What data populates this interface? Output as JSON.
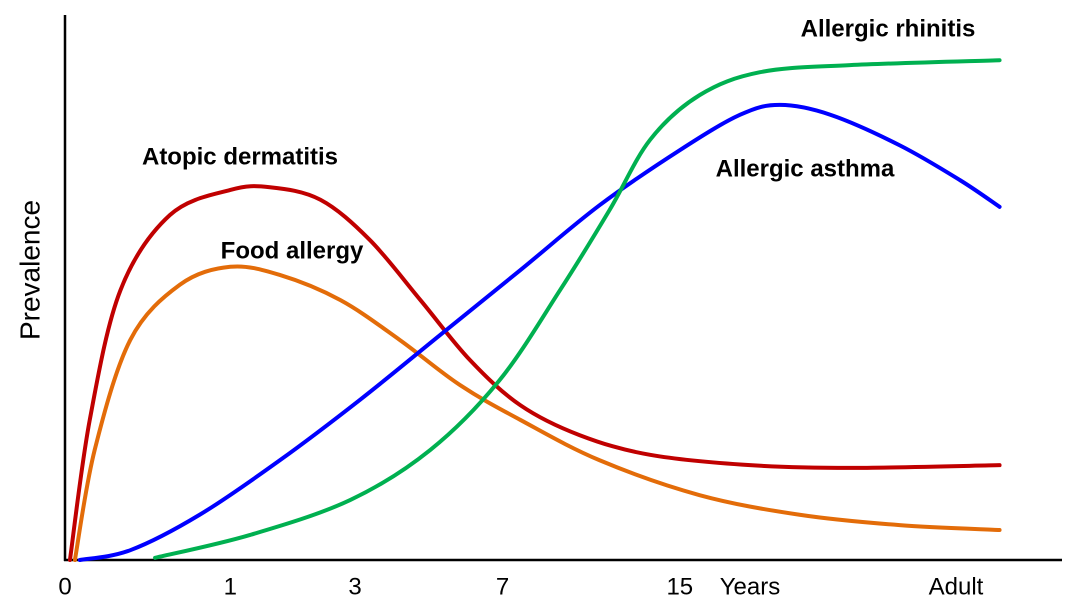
{
  "chart_data": {
    "type": "line",
    "y_label": "Prevalence",
    "x_label": "Years",
    "xlim": [
      0,
      100
    ],
    "ylim": [
      0,
      100
    ],
    "xticks": [
      0,
      {
        "value": 16.7,
        "label": "1"
      },
      {
        "value": 29.3,
        "label": "3"
      },
      {
        "value": 44.2,
        "label": "7"
      },
      {
        "value": 62.1,
        "label": "15"
      },
      {
        "value": 90,
        "label": "Adult"
      }
    ],
    "series": [
      {
        "name": "Atopic dermatitis",
        "color": "#c00000",
        "x": [
          0.5,
          2.5,
          5.6,
          10.6,
          16.7,
          20.7,
          25.8,
          30.8,
          35.9,
          40.9,
          46,
          52,
          59.1,
          69.2,
          79.3,
          94.4
        ],
        "values": [
          0,
          25.7,
          49.5,
          63.3,
          67.9,
          68.4,
          66.1,
          58.7,
          47.7,
          36.7,
          28.4,
          22.9,
          19.3,
          17.4,
          16.9,
          17.4
        ]
      },
      {
        "name": "Food allergy",
        "color": "#e36c09",
        "x": [
          1,
          3,
          6.6,
          11.6,
          16.7,
          21.7,
          27.8,
          33.8,
          39.9,
          46,
          54,
          64.1,
          74.2,
          84.3,
          94.4
        ],
        "values": [
          0,
          20.2,
          40.4,
          50.5,
          53.8,
          52.3,
          47.7,
          40.4,
          32.1,
          25.7,
          18.3,
          11.9,
          8.3,
          6.4,
          5.5
        ]
      },
      {
        "name": "Allergic asthma",
        "color": "#0000ff",
        "x": [
          1.5,
          6.6,
          13.6,
          21.7,
          29.8,
          37.9,
          46,
          54,
          62.1,
          68.2,
          72.2,
          77.3,
          84.3,
          90.4,
          94.4
        ],
        "values": [
          0,
          1.8,
          8.3,
          18.3,
          29.4,
          41.3,
          53.2,
          65.1,
          75.2,
          81.7,
          83.5,
          81.7,
          76.1,
          69.7,
          64.8
        ]
      },
      {
        "name": "Allergic rhinitis",
        "color": "#00b050",
        "x": [
          9.1,
          18.7,
          28.8,
          36.9,
          43.9,
          50,
          55,
          59.1,
          64.1,
          70.2,
          79.3,
          94.4
        ],
        "values": [
          0.4,
          4.6,
          11,
          20.2,
          33,
          49.5,
          64.2,
          77.1,
          85.3,
          89.5,
          90.8,
          91.7
        ]
      }
    ]
  }
}
